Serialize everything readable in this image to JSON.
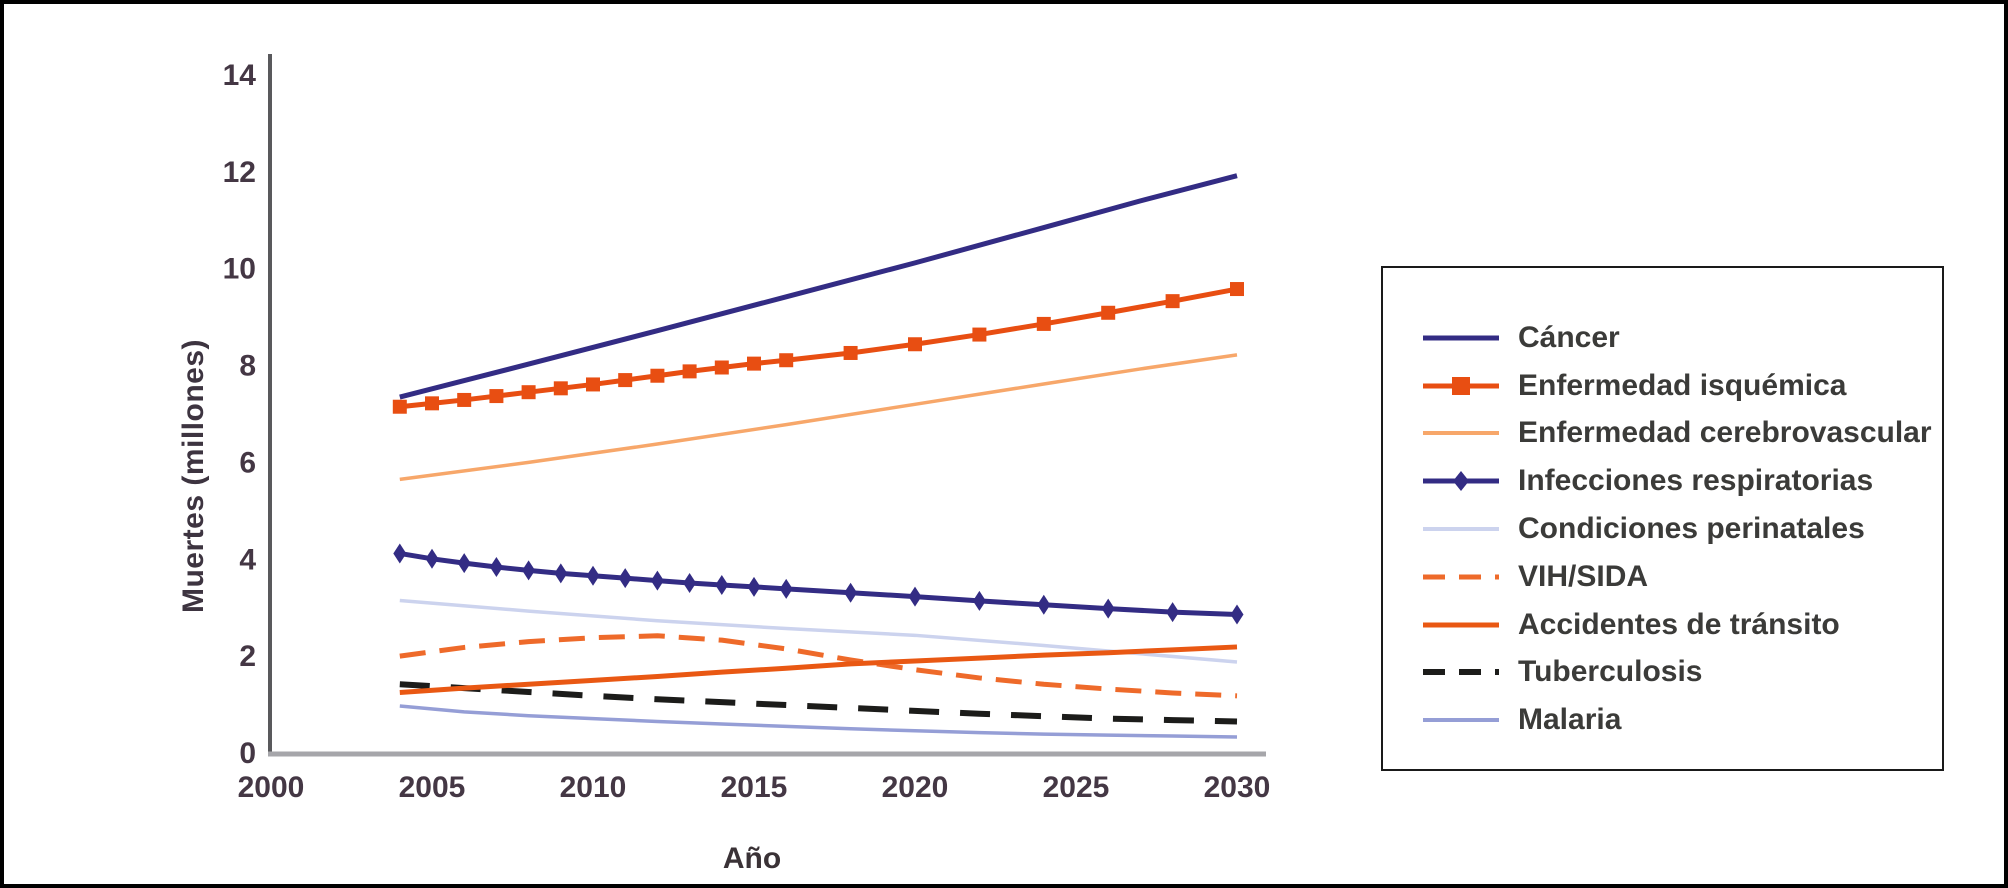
{
  "figure": {
    "background": "#ffffff",
    "border_color": "#000000"
  },
  "chart_data": {
    "type": "line",
    "title": "",
    "xlabel": "Año",
    "ylabel": "Muertes (millones)",
    "xlim": [
      2000,
      2031
    ],
    "ylim": [
      0,
      14
    ],
    "x_ticks": [
      2000,
      2005,
      2010,
      2015,
      2020,
      2025,
      2030
    ],
    "y_ticks": [
      0,
      2,
      4,
      6,
      8,
      10,
      12,
      14
    ],
    "grid": false,
    "legend_position": "right-box",
    "axis_color_y": "#59595c",
    "axis_color_x": "#a6a6aa",
    "tick_text_color": "#443744",
    "series": [
      {
        "name": "Cáncer",
        "color": "#332c84",
        "width": 5,
        "dash": null,
        "marker": "none",
        "points": [
          [
            2004,
            7.35
          ],
          [
            2008,
            8.03
          ],
          [
            2012,
            8.72
          ],
          [
            2016,
            9.42
          ],
          [
            2020,
            10.12
          ],
          [
            2024,
            10.85
          ],
          [
            2027,
            11.4
          ],
          [
            2030,
            11.92
          ]
        ]
      },
      {
        "name": "Enfermedad isquémica",
        "color": "#e84e12",
        "width": 5,
        "dash": null,
        "marker": "square",
        "points": [
          [
            2004,
            7.15
          ],
          [
            2005,
            7.22
          ],
          [
            2006,
            7.29
          ],
          [
            2007,
            7.37
          ],
          [
            2008,
            7.45
          ],
          [
            2009,
            7.53
          ],
          [
            2010,
            7.61
          ],
          [
            2011,
            7.7
          ],
          [
            2012,
            7.79
          ],
          [
            2013,
            7.88
          ],
          [
            2014,
            7.96
          ],
          [
            2015,
            8.04
          ],
          [
            2016,
            8.11
          ],
          [
            2018,
            8.26
          ],
          [
            2020,
            8.44
          ],
          [
            2022,
            8.64
          ],
          [
            2024,
            8.86
          ],
          [
            2026,
            9.09
          ],
          [
            2028,
            9.33
          ],
          [
            2030,
            9.58
          ]
        ]
      },
      {
        "name": "Enfermedad cerebrovascular",
        "color": "#f7a76a",
        "width": 3.5,
        "dash": null,
        "marker": "none",
        "points": [
          [
            2004,
            5.65
          ],
          [
            2008,
            6.0
          ],
          [
            2012,
            6.38
          ],
          [
            2016,
            6.78
          ],
          [
            2020,
            7.2
          ],
          [
            2024,
            7.62
          ],
          [
            2027,
            7.93
          ],
          [
            2030,
            8.22
          ]
        ]
      },
      {
        "name": "Infecciones respiratorias",
        "color": "#332c84",
        "width": 5,
        "dash": null,
        "marker": "diamond",
        "points": [
          [
            2004,
            4.12
          ],
          [
            2005,
            4.01
          ],
          [
            2006,
            3.92
          ],
          [
            2007,
            3.84
          ],
          [
            2008,
            3.77
          ],
          [
            2009,
            3.71
          ],
          [
            2010,
            3.66
          ],
          [
            2011,
            3.61
          ],
          [
            2012,
            3.56
          ],
          [
            2013,
            3.51
          ],
          [
            2014,
            3.47
          ],
          [
            2015,
            3.43
          ],
          [
            2016,
            3.39
          ],
          [
            2018,
            3.31
          ],
          [
            2020,
            3.23
          ],
          [
            2022,
            3.14
          ],
          [
            2024,
            3.06
          ],
          [
            2026,
            2.98
          ],
          [
            2028,
            2.91
          ],
          [
            2030,
            2.86
          ]
        ]
      },
      {
        "name": "Condiciones perinatales",
        "color": "#ccd3ee",
        "width": 3.5,
        "dash": null,
        "marker": "none",
        "points": [
          [
            2004,
            3.15
          ],
          [
            2008,
            2.93
          ],
          [
            2012,
            2.73
          ],
          [
            2016,
            2.57
          ],
          [
            2020,
            2.43
          ],
          [
            2024,
            2.22
          ],
          [
            2027,
            2.05
          ],
          [
            2030,
            1.88
          ]
        ]
      },
      {
        "name": "VIH/SIDA",
        "color": "#ee6a2a",
        "width": 5,
        "dash": "26 14",
        "marker": "none",
        "points": [
          [
            2004,
            2.0
          ],
          [
            2006,
            2.18
          ],
          [
            2008,
            2.3
          ],
          [
            2010,
            2.38
          ],
          [
            2012,
            2.42
          ],
          [
            2014,
            2.33
          ],
          [
            2016,
            2.15
          ],
          [
            2018,
            1.92
          ],
          [
            2020,
            1.72
          ],
          [
            2022,
            1.55
          ],
          [
            2024,
            1.42
          ],
          [
            2026,
            1.32
          ],
          [
            2028,
            1.24
          ],
          [
            2030,
            1.18
          ]
        ]
      },
      {
        "name": "Accidentes de tránsito",
        "color": "#e95813",
        "width": 5,
        "dash": null,
        "marker": "none",
        "points": [
          [
            2004,
            1.25
          ],
          [
            2006,
            1.34
          ],
          [
            2008,
            1.42
          ],
          [
            2010,
            1.5
          ],
          [
            2012,
            1.58
          ],
          [
            2014,
            1.67
          ],
          [
            2016,
            1.75
          ],
          [
            2018,
            1.84
          ],
          [
            2020,
            1.9
          ],
          [
            2022,
            1.96
          ],
          [
            2024,
            2.02
          ],
          [
            2026,
            2.07
          ],
          [
            2028,
            2.13
          ],
          [
            2030,
            2.19
          ]
        ]
      },
      {
        "name": "Tuberculosis",
        "color": "#1c1c1a",
        "width": 6,
        "dash": "30 21",
        "marker": "none",
        "points": [
          [
            2004,
            1.42
          ],
          [
            2006,
            1.34
          ],
          [
            2008,
            1.26
          ],
          [
            2010,
            1.18
          ],
          [
            2012,
            1.11
          ],
          [
            2014,
            1.05
          ],
          [
            2016,
            0.99
          ],
          [
            2018,
            0.93
          ],
          [
            2020,
            0.87
          ],
          [
            2022,
            0.81
          ],
          [
            2024,
            0.76
          ],
          [
            2026,
            0.71
          ],
          [
            2028,
            0.68
          ],
          [
            2030,
            0.65
          ]
        ]
      },
      {
        "name": "Malaria",
        "color": "#959ed6",
        "width": 3.5,
        "dash": null,
        "marker": "none",
        "points": [
          [
            2004,
            0.97
          ],
          [
            2006,
            0.85
          ],
          [
            2008,
            0.77
          ],
          [
            2010,
            0.71
          ],
          [
            2012,
            0.65
          ],
          [
            2014,
            0.6
          ],
          [
            2016,
            0.55
          ],
          [
            2018,
            0.5
          ],
          [
            2020,
            0.46
          ],
          [
            2022,
            0.42
          ],
          [
            2024,
            0.39
          ],
          [
            2026,
            0.37
          ],
          [
            2028,
            0.35
          ],
          [
            2030,
            0.33
          ]
        ]
      }
    ]
  }
}
